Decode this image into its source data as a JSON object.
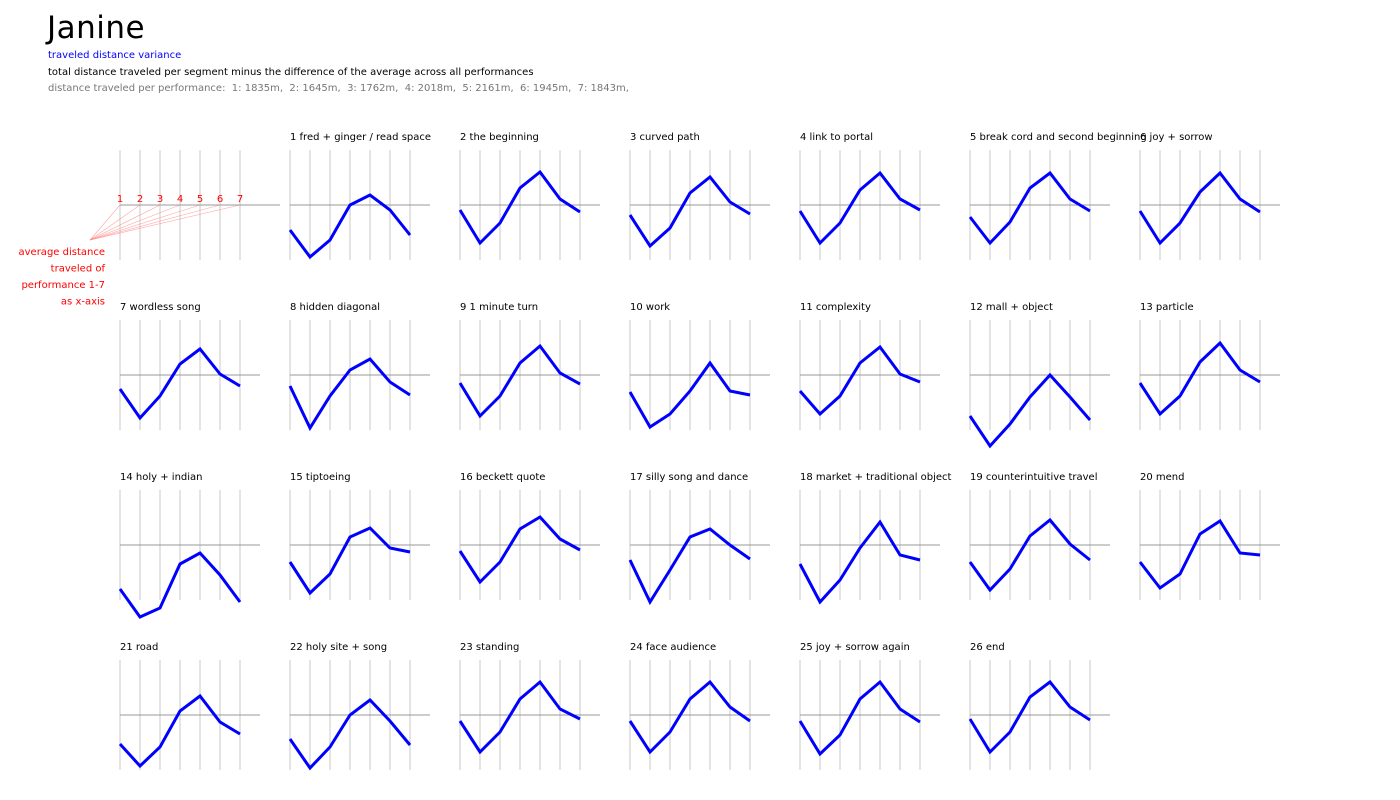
{
  "header": {
    "title": "Janine",
    "subtitle": "traveled distance variance",
    "description": "total distance traveled per segment minus the difference of the average across all performances",
    "distances_label": "distance traveled per performance:  1: 1835m,  2: 1645m,  3: 1762m,  4: 2018m,  5: 2161m,  6: 1945m,  7: 1843m,"
  },
  "legend": {
    "numbers": [
      "1",
      "2",
      "3",
      "4",
      "5",
      "6",
      "7"
    ],
    "text_lines": [
      "average distance",
      "traveled of",
      "performance 1-7",
      "as x-axis"
    ],
    "color": "#ff0000"
  },
  "chart_data": {
    "type": "line",
    "performances": [
      1,
      2,
      3,
      4,
      5,
      6,
      7
    ],
    "performance_distances_m": [
      1835,
      1645,
      1762,
      2018,
      2161,
      1945,
      1843
    ],
    "line_color": "#0000ff",
    "ylim": [
      -1,
      1
    ],
    "panels": [
      {
        "label": "1 fred + ginger / read space",
        "values": [
          -0.25,
          -0.52,
          -0.35,
          0.0,
          0.1,
          -0.05,
          -0.3
        ]
      },
      {
        "label": "2 the beginning",
        "values": [
          -0.05,
          -0.38,
          -0.18,
          0.17,
          0.33,
          0.06,
          -0.07
        ]
      },
      {
        "label": "3 curved path",
        "values": [
          -0.1,
          -0.41,
          -0.23,
          0.12,
          0.28,
          0.03,
          -0.09
        ]
      },
      {
        "label": "4 link to portal",
        "values": [
          -0.06,
          -0.38,
          -0.18,
          0.15,
          0.32,
          0.06,
          -0.05
        ]
      },
      {
        "label": "5 break cord and second beginning",
        "values": [
          -0.12,
          -0.38,
          -0.17,
          0.17,
          0.32,
          0.06,
          -0.06
        ]
      },
      {
        "label": "6 joy + sorrow",
        "values": [
          -0.06,
          -0.38,
          -0.18,
          0.13,
          0.32,
          0.06,
          -0.07
        ]
      },
      {
        "label": "7 wordless song",
        "values": [
          -0.14,
          -0.43,
          -0.21,
          0.11,
          0.26,
          0.01,
          -0.11
        ]
      },
      {
        "label": "8 hidden diagonal",
        "values": [
          -0.11,
          -0.53,
          -0.21,
          0.05,
          0.16,
          -0.07,
          -0.2
        ]
      },
      {
        "label": "9 1 minute turn",
        "values": [
          -0.08,
          -0.41,
          -0.21,
          0.12,
          0.29,
          0.02,
          -0.09
        ]
      },
      {
        "label": "10 work",
        "values": [
          -0.17,
          -0.52,
          -0.39,
          -0.16,
          0.12,
          -0.16,
          -0.2
        ]
      },
      {
        "label": "11 complexity",
        "values": [
          -0.16,
          -0.39,
          -0.21,
          0.12,
          0.28,
          0.01,
          -0.07
        ]
      },
      {
        "label": "12 mall + object",
        "values": [
          -0.41,
          -0.71,
          -0.49,
          -0.22,
          0.0,
          -0.22,
          -0.45
        ]
      },
      {
        "label": "13 particle",
        "values": [
          -0.08,
          -0.39,
          -0.21,
          0.13,
          0.32,
          0.05,
          -0.07
        ]
      },
      {
        "label": "14 holy + indian",
        "values": [
          -0.44,
          -0.72,
          -0.63,
          -0.19,
          -0.08,
          -0.3,
          -0.57
        ]
      },
      {
        "label": "15 tiptoeing",
        "values": [
          -0.17,
          -0.48,
          -0.29,
          0.08,
          0.17,
          -0.03,
          -0.07
        ]
      },
      {
        "label": "16 beckett quote",
        "values": [
          -0.06,
          -0.37,
          -0.17,
          0.16,
          0.28,
          0.06,
          -0.05
        ]
      },
      {
        "label": "17 silly song and dance",
        "values": [
          -0.15,
          -0.57,
          -0.25,
          0.08,
          0.16,
          0.0,
          -0.14
        ]
      },
      {
        "label": "18 market + traditional object",
        "values": [
          -0.19,
          -0.57,
          -0.35,
          -0.03,
          0.23,
          -0.1,
          -0.15
        ]
      },
      {
        "label": "19 counterintuitive travel",
        "values": [
          -0.17,
          -0.45,
          -0.24,
          0.09,
          0.25,
          0.01,
          -0.15
        ]
      },
      {
        "label": "20 mend",
        "values": [
          -0.17,
          -0.43,
          -0.29,
          0.11,
          0.24,
          -0.08,
          -0.1
        ]
      },
      {
        "label": "21 road",
        "values": [
          -0.29,
          -0.51,
          -0.32,
          0.04,
          0.19,
          -0.07,
          -0.19
        ]
      },
      {
        "label": "22 holy site + song",
        "values": [
          -0.24,
          -0.53,
          -0.32,
          0.0,
          0.15,
          -0.06,
          -0.3
        ]
      },
      {
        "label": "23 standing",
        "values": [
          -0.06,
          -0.37,
          -0.17,
          0.16,
          0.33,
          0.06,
          -0.04
        ]
      },
      {
        "label": "24 face audience",
        "values": [
          -0.06,
          -0.37,
          -0.17,
          0.16,
          0.33,
          0.08,
          -0.06
        ]
      },
      {
        "label": "25 joy + sorrow again",
        "values": [
          -0.06,
          -0.39,
          -0.2,
          0.16,
          0.33,
          0.06,
          -0.07
        ]
      },
      {
        "label": "26 end",
        "values": [
          -0.04,
          -0.37,
          -0.17,
          0.18,
          0.33,
          0.08,
          -0.05
        ]
      }
    ]
  }
}
